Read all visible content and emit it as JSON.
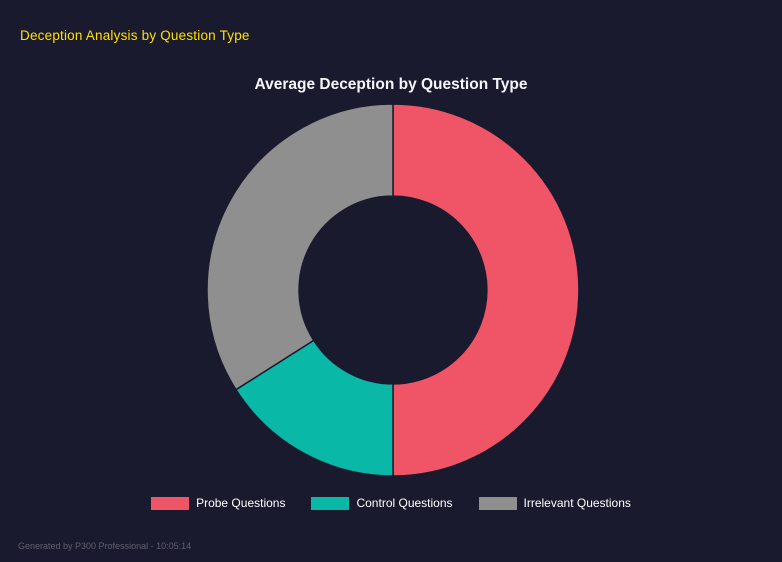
{
  "page": {
    "title": "Deception Analysis by Question Type",
    "footer": "Generated by P300 Professional - 10:05:14"
  },
  "colors": {
    "background": "#1a1a2e",
    "page_title": "#ffe000",
    "chart_title": "#f5f6fa",
    "legend_text": "#ffffff",
    "footer_text": "#5f5f6e"
  },
  "chart_data": {
    "type": "pie",
    "subtype": "donut",
    "title": "Average Deception by Question Type",
    "legend_position": "bottom",
    "inner_radius_ratio": 0.505,
    "start_angle_deg": -90,
    "direction": "clockwise",
    "series": [
      {
        "name": "Probe Questions",
        "value": 50,
        "color": "#ef5566"
      },
      {
        "name": "Control Questions",
        "value": 16,
        "color": "#09b8a6"
      },
      {
        "name": "Irrelevant Questions",
        "value": 34,
        "color": "#8f8f8f"
      }
    ]
  }
}
